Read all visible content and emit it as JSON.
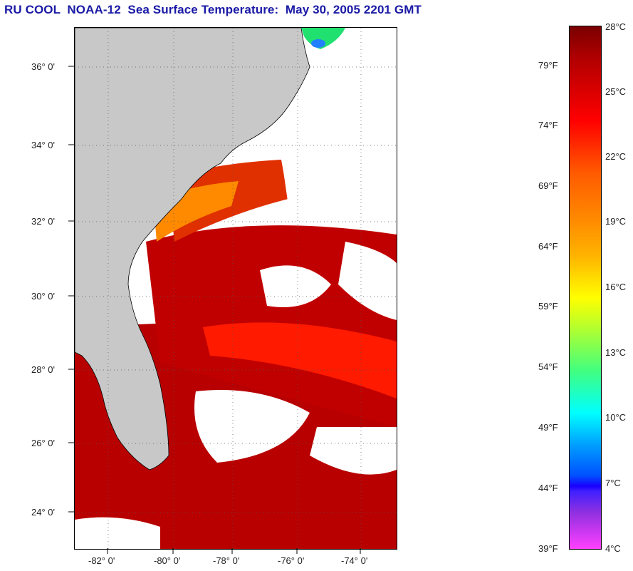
{
  "title": "RU COOL  NOAA-12  Sea Surface Temperature:  May 30, 2005 2201 GMT",
  "map": {
    "lat_labels": [
      "36° 0'",
      "34° 0'",
      "32° 0'",
      "30° 0'",
      "28° 0'",
      "26° 0'",
      "24° 0'"
    ],
    "lon_labels": [
      "-82° 0'",
      "-80° 0'",
      "-78° 0'",
      "-76° 0'",
      "-74° 0'"
    ],
    "colors": {
      "land": "#c8c8c8",
      "cloud": "#ffffff",
      "sst_warm": "#b00000",
      "sst_hot": "#ff1000"
    }
  },
  "colorbar": {
    "celsius_labels": [
      "28°C",
      "25°C",
      "22°C",
      "19°C",
      "16°C",
      "13°C",
      "10°C",
      "7°C",
      "4°C"
    ],
    "fahrenheit_labels": [
      "79°F",
      "74°F",
      "69°F",
      "64°F",
      "59°F",
      "54°F",
      "49°F",
      "44°F",
      "39°F"
    ]
  }
}
